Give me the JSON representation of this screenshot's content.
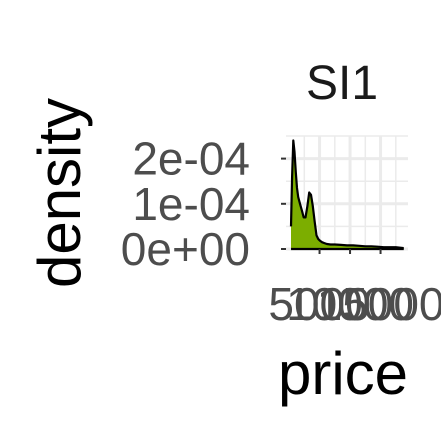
{
  "chart_data": {
    "type": "area",
    "facet_label": "SI1",
    "xlabel": "price",
    "ylabel": "density",
    "x_tick_labels": [
      "5000",
      "10000",
      "15000"
    ],
    "x_ticks": [
      5000,
      10000,
      15000
    ],
    "y_tick_labels": [
      "0e+00",
      "1e-04",
      "2e-04"
    ],
    "y_ticks": [
      0,
      0.0001,
      0.0002
    ],
    "xlim": [
      -500,
      19500
    ],
    "ylim": [
      0,
      0.00025
    ],
    "grid": true,
    "fill_color": "#7CAE00",
    "line_color": "#000000",
    "x": [
      326,
      500,
      700,
      900,
      1100,
      1300,
      1500,
      1800,
      2100,
      2400,
      2700,
      3000,
      3300,
      3600,
      3900,
      4200,
      4500,
      4800,
      5100,
      5400,
      5800,
      6200,
      6800,
      7500,
      8500,
      9500,
      10500,
      11500,
      12500,
      13500,
      14500,
      15500,
      16500,
      17500,
      18800
    ],
    "y": [
      5e-05,
      0.00016,
      0.00024,
      0.000215,
      0.00017,
      0.000135,
      0.000115,
      0.0001,
      8.5e-05,
      7e-05,
      7e-05,
      9.5e-05,
      0.000125,
      0.00012,
      9.5e-05,
      6e-05,
      3e-05,
      2.2e-05,
      1.8e-05,
      1.5e-05,
      1.3e-05,
      1.1e-05,
      1e-05,
      1e-05,
      9e-06,
      8e-06,
      8e-06,
      7e-06,
      6e-06,
      6e-06,
      5e-06,
      4e-06,
      4e-06,
      4e-06,
      2e-06
    ]
  }
}
